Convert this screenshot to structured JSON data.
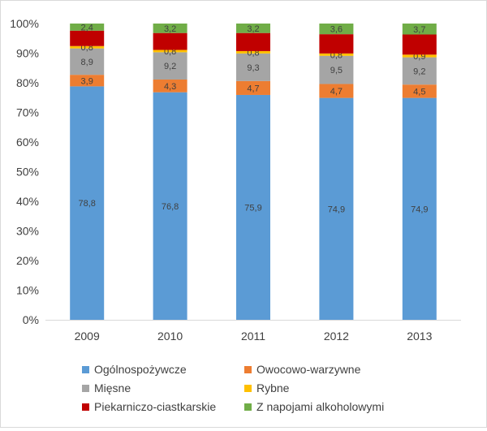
{
  "chart_data": {
    "type": "bar",
    "stacked": true,
    "percent_stacked": true,
    "categories": [
      "2009",
      "2010",
      "2011",
      "2012",
      "2013"
    ],
    "yticks": [
      "0%",
      "10%",
      "20%",
      "30%",
      "40%",
      "50%",
      "60%",
      "70%",
      "80%",
      "90%",
      "100%"
    ],
    "ylim": [
      0,
      100
    ],
    "grid": false,
    "legend_position": "bottom",
    "series": [
      {
        "name": "Ogólnospożywcze",
        "color": "#5b9bd5",
        "values": [
          78.8,
          76.8,
          75.9,
          74.9,
          74.9
        ],
        "labels": [
          "78,8",
          "76,8",
          "75,9",
          "74,9",
          "74,9"
        ]
      },
      {
        "name": "Owocowo-warzywne",
        "color": "#ed7d31",
        "values": [
          3.9,
          4.3,
          4.7,
          4.7,
          4.5
        ],
        "labels": [
          "3,9",
          "4,3",
          "4,7",
          "4,7",
          "4,5"
        ]
      },
      {
        "name": "Mięsne",
        "color": "#a5a5a5",
        "values": [
          8.9,
          9.2,
          9.3,
          9.5,
          9.2
        ],
        "labels": [
          "8,9",
          "9,2",
          "9,3",
          "9,5",
          "9,2"
        ]
      },
      {
        "name": "Rybne",
        "color": "#ffc000",
        "values": [
          0.8,
          0.8,
          0.8,
          0.8,
          0.9
        ],
        "labels": [
          "0,8",
          "0,8",
          "0,8",
          "0,8",
          "0,9"
        ]
      },
      {
        "name": "Piekarniczo-ciastkarskie",
        "color": "#c00000",
        "values": [
          5.2,
          5.7,
          6.1,
          6.5,
          6.8
        ],
        "labels": [
          "",
          "",
          "",
          "",
          ""
        ]
      },
      {
        "name": "Z napojami alkoholowymi",
        "color": "#70ad47",
        "values": [
          2.4,
          3.2,
          3.2,
          3.6,
          3.7
        ],
        "labels": [
          "2,4",
          "3,2",
          "3,2",
          "3,6",
          "3,7"
        ]
      }
    ]
  }
}
